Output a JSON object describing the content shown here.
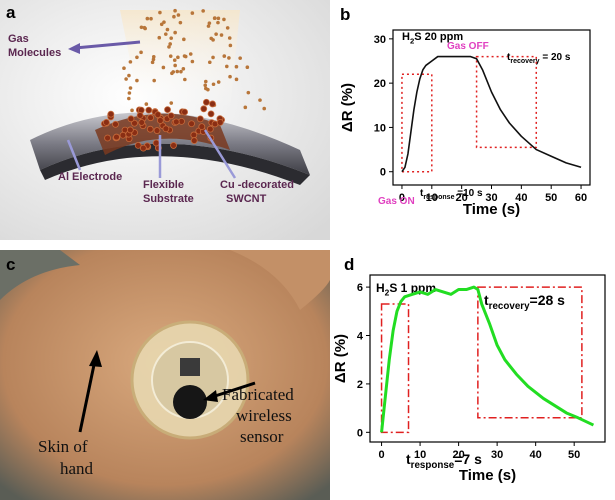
{
  "figure": {
    "panel_a": {
      "label": "a",
      "gas_molecules": [
        "Gas",
        "Molecules"
      ],
      "al_electrode": "Al  Electrode",
      "flexible_substrate": [
        "Flexible",
        "Substrate"
      ],
      "cu_swcnt": [
        "Cu -decorated",
        "SWCNT"
      ]
    },
    "panel_c": {
      "label": "c",
      "skin": [
        "Skin of",
        "hand"
      ],
      "sensor": [
        "Fabricated",
        "wireless",
        "sensor"
      ]
    }
  },
  "chart_data": [
    {
      "type": "line",
      "label": "b",
      "title": {
        "main": "H",
        "sub": "2",
        "rest": "S 20 ppm"
      },
      "xlabel": "Time (s)",
      "ylabel": "ΔR (%)",
      "x": [
        0,
        1,
        2,
        3,
        4,
        5,
        6,
        7,
        8,
        10,
        12,
        15,
        20,
        23,
        25,
        27,
        30,
        33,
        36,
        40,
        45,
        50,
        55,
        60
      ],
      "values": [
        0,
        1,
        4,
        9,
        14,
        18,
        21,
        23,
        24,
        25,
        26,
        26,
        26,
        26,
        25.5,
        23,
        18,
        14,
        11,
        8,
        5,
        3.5,
        2,
        1
      ],
      "color": "#111111",
      "line_width": 1.6,
      "xlim": [
        -3,
        63
      ],
      "ylim": [
        -3,
        32
      ],
      "xticks": [
        0,
        10,
        20,
        30,
        40,
        50,
        60
      ],
      "yticks": [
        0,
        10,
        20,
        30
      ],
      "region_color": "#e02020",
      "region_style": "dotted",
      "regions": [
        {
          "xlim": [
            0,
            10
          ],
          "ylim": [
            0,
            22
          ]
        },
        {
          "xlim": [
            25,
            45
          ],
          "ylim": [
            5.5,
            26
          ]
        }
      ],
      "annotations": {
        "gas_on": "Gas ON",
        "gas_off": "Gas OFF",
        "response": {
          "main": "t",
          "sub": "response",
          "rest": " =10 s"
        },
        "recovery": {
          "main": "t",
          "sub": "recovery",
          "rest": " = 20 s"
        }
      }
    },
    {
      "type": "line",
      "label": "d",
      "title": {
        "main": "H",
        "sub": "2",
        "rest": "S 1 ppm"
      },
      "xlabel": "Time (s)",
      "ylabel": "ΔR (%)",
      "x": [
        0,
        1,
        2,
        3,
        4,
        5,
        6,
        8,
        10,
        12,
        14,
        16,
        18,
        20,
        22,
        24,
        25,
        26,
        28,
        30,
        32,
        35,
        38,
        42,
        45,
        48,
        51,
        55
      ],
      "values": [
        0,
        1.5,
        3,
        4.2,
        5,
        5.4,
        5.6,
        5.7,
        5.8,
        5.7,
        5.9,
        5.8,
        5.7,
        5.9,
        5.9,
        6.0,
        5.9,
        5.3,
        4.5,
        3.6,
        3.0,
        2.4,
        1.9,
        1.4,
        1.1,
        0.8,
        0.6,
        0.3
      ],
      "color": "#22dd22",
      "line_width": 3,
      "xlim": [
        -3,
        58
      ],
      "ylim": [
        -0.4,
        6.5
      ],
      "xticks": [
        0,
        10,
        20,
        30,
        40,
        50
      ],
      "yticks": [
        0,
        2,
        4,
        6
      ],
      "region_color": "#e02020",
      "region_style": "dash-dot",
      "regions": [
        {
          "xlim": [
            0,
            7
          ],
          "ylim": [
            0,
            5.3
          ]
        },
        {
          "xlim": [
            25,
            52
          ],
          "ylim": [
            0.6,
            6.0
          ]
        }
      ],
      "annotations": {
        "response": {
          "main": "t",
          "sub": "response",
          "rest": "=7 s"
        },
        "recovery": {
          "main": "t",
          "sub": "recovery",
          "rest": "=28 s"
        }
      }
    }
  ]
}
